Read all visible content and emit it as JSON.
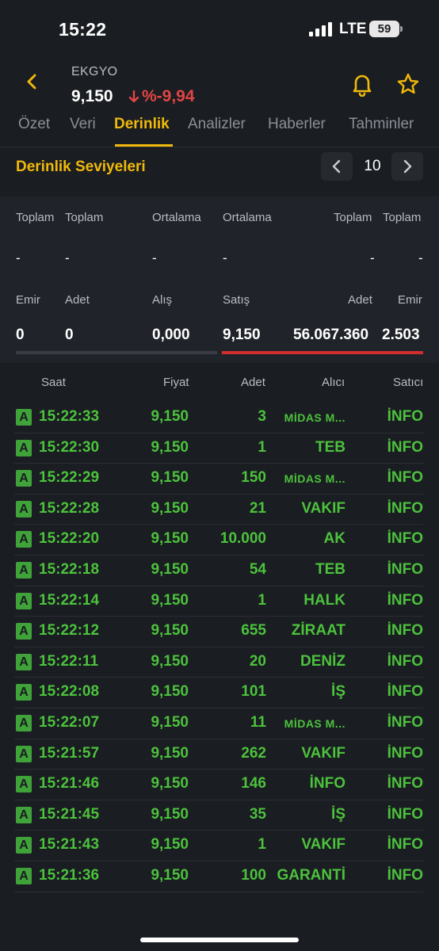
{
  "status_bar": {
    "time": "15:22",
    "network": "LTE",
    "battery": "59"
  },
  "header": {
    "symbol": "EKGYO",
    "price": "9,150",
    "change": "%-9,94"
  },
  "tabs": [
    "Özet",
    "Veri",
    "Derinlik",
    "Analizler",
    "Haberler",
    "Tahminler"
  ],
  "active_tab": "Derinlik",
  "depth": {
    "title": "Derinlik Seviyeleri",
    "levels": "10"
  },
  "summary": {
    "top_labels": [
      "Toplam",
      "Toplam",
      "Ortalama",
      "Ortalama",
      "Toplam",
      "Toplam"
    ],
    "dashes": [
      "-",
      "-",
      "-",
      "-",
      "-",
      "-"
    ],
    "bottom_labels": [
      "Emir",
      "Adet",
      "Alış",
      "Satış",
      "Adet",
      "Emir"
    ],
    "values": [
      "0",
      "0",
      "0,000",
      "9,150",
      "56.067.360",
      "2.503"
    ]
  },
  "trades": {
    "headers": [
      "Saat",
      "Fiyat",
      "Adet",
      "Alıcı",
      "Satıcı"
    ],
    "rows": [
      {
        "side": "A",
        "time": "15:22:33",
        "price": "9,150",
        "qty": "3",
        "buyer": "MİDAS M...",
        "seller": "İNFO"
      },
      {
        "side": "A",
        "time": "15:22:30",
        "price": "9,150",
        "qty": "1",
        "buyer": "TEB",
        "seller": "İNFO"
      },
      {
        "side": "A",
        "time": "15:22:29",
        "price": "9,150",
        "qty": "150",
        "buyer": "MİDAS M...",
        "seller": "İNFO"
      },
      {
        "side": "A",
        "time": "15:22:28",
        "price": "9,150",
        "qty": "21",
        "buyer": "VAKIF",
        "seller": "İNFO"
      },
      {
        "side": "A",
        "time": "15:22:20",
        "price": "9,150",
        "qty": "10.000",
        "buyer": "AK",
        "seller": "İNFO"
      },
      {
        "side": "A",
        "time": "15:22:18",
        "price": "9,150",
        "qty": "54",
        "buyer": "TEB",
        "seller": "İNFO"
      },
      {
        "side": "A",
        "time": "15:22:14",
        "price": "9,150",
        "qty": "1",
        "buyer": "HALK",
        "seller": "İNFO"
      },
      {
        "side": "A",
        "time": "15:22:12",
        "price": "9,150",
        "qty": "655",
        "buyer": "ZİRAAT",
        "seller": "İNFO"
      },
      {
        "side": "A",
        "time": "15:22:11",
        "price": "9,150",
        "qty": "20",
        "buyer": "DENİZ",
        "seller": "İNFO"
      },
      {
        "side": "A",
        "time": "15:22:08",
        "price": "9,150",
        "qty": "101",
        "buyer": "İŞ",
        "seller": "İNFO"
      },
      {
        "side": "A",
        "time": "15:22:07",
        "price": "9,150",
        "qty": "11",
        "buyer": "MİDAS M...",
        "seller": "İNFO"
      },
      {
        "side": "A",
        "time": "15:21:57",
        "price": "9,150",
        "qty": "262",
        "buyer": "VAKIF",
        "seller": "İNFO"
      },
      {
        "side": "A",
        "time": "15:21:46",
        "price": "9,150",
        "qty": "146",
        "buyer": "İNFO",
        "seller": "İNFO"
      },
      {
        "side": "A",
        "time": "15:21:45",
        "price": "9,150",
        "qty": "35",
        "buyer": "İŞ",
        "seller": "İNFO"
      },
      {
        "side": "A",
        "time": "15:21:43",
        "price": "9,150",
        "qty": "1",
        "buyer": "VAKIF",
        "seller": "İNFO"
      },
      {
        "side": "A",
        "time": "15:21:36",
        "price": "9,150",
        "qty": "100",
        "buyer": "GARANTİ",
        "seller": "İNFO"
      }
    ]
  },
  "colors": {
    "accent": "#f0b90b",
    "negative": "#e24545",
    "positive": "#4cc23d",
    "background": "#1a1d21"
  },
  "icons": [
    "back-chevron-icon",
    "arrow-down-icon",
    "bell-icon",
    "star-icon",
    "chevron-left-icon",
    "chevron-right-icon",
    "signal-icon",
    "battery-icon"
  ]
}
